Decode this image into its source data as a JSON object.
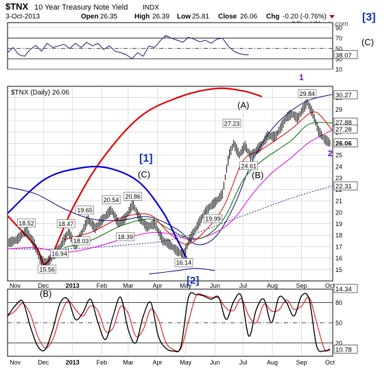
{
  "header": {
    "symbol": "$TNX",
    "name": "10 Year Treasury Note Yield",
    "exchange": "INDX",
    "date": "3-Oct-2013",
    "open_label": "Open",
    "open": "26.35",
    "high_label": "High",
    "high": "26.39",
    "low_label": "Low",
    "low": "25.81",
    "close_label": "Close",
    "close": "26.06",
    "chg_label": "Chg",
    "chg": "-0.20 (-0.76%)",
    "watermark": "©StockCharts.com"
  },
  "colors": {
    "price": "#000000",
    "ma_red": "#e02020",
    "ma_green": "#208020",
    "ma_magenta": "#e020e0",
    "band_navy": "#000080",
    "dotted_navy": "#2020a0",
    "cycle_red": "#e00000",
    "cycle_blue": "#0000e0",
    "wave_purple": "#8000c0",
    "wave_blue": "#1030c0",
    "grid": "#c8c8c8",
    "frame": "#000000",
    "down_arrow": "#c00000"
  },
  "annotations": {
    "wave3": "[3]",
    "waveC_right": "(C)",
    "wave1": "1",
    "wave2": "2",
    "waveA": "(A)",
    "waveB": "(B)",
    "wave1_blue": "[1]",
    "waveC_mid": "(C)",
    "wave2_blue": "[2]",
    "waveB_bottom": "(B)"
  },
  "chart_data": [
    {
      "panel": "RSI",
      "type": "line",
      "ylim": [
        10,
        100
      ],
      "ticks": [
        10,
        30,
        50,
        70,
        90
      ],
      "reference_lines": [
        30,
        50,
        70
      ],
      "last_value": "38.07",
      "x_days": [
        0,
        6,
        12,
        18,
        24,
        30,
        36,
        42,
        48,
        54,
        60,
        66,
        72,
        78,
        84,
        90,
        96,
        102,
        108,
        114,
        120,
        126,
        132,
        138,
        144,
        150,
        156,
        162,
        168,
        174,
        180,
        186,
        192,
        198,
        204,
        210,
        216,
        222,
        228,
        234,
        240,
        246,
        252,
        256
      ],
      "values": [
        42,
        52,
        38,
        35,
        48,
        56,
        45,
        60,
        52,
        55,
        58,
        50,
        60,
        52,
        62,
        55,
        60,
        48,
        55,
        45,
        42,
        38,
        30,
        42,
        35,
        55,
        52,
        65,
        75,
        70,
        66,
        62,
        72,
        68,
        63,
        66,
        60,
        68,
        70,
        55,
        45,
        40,
        38,
        38
      ]
    },
    {
      "panel": "Price",
      "type": "ohlc",
      "title": "$TNX (Daily) 26.06",
      "ylim": [
        14,
        31
      ],
      "ticks": [
        15,
        16,
        17,
        18,
        19,
        20,
        21,
        22,
        23,
        24,
        25,
        26,
        27,
        28,
        29,
        30
      ],
      "x_tick_labels": [
        "Nov",
        "Dec",
        "2013",
        "Feb",
        "Mar",
        "Apr",
        "May",
        "Jun",
        "Jul",
        "Aug",
        "Sep",
        "Oct"
      ],
      "x_tick_days": [
        8,
        38,
        69,
        100,
        128,
        159,
        189,
        220,
        250,
        281,
        312,
        342
      ],
      "x_range_days": [
        0,
        345
      ],
      "price_points": [
        {
          "d": 0,
          "v": 17.3
        },
        {
          "d": 10,
          "v": 17.6
        },
        {
          "d": 20,
          "v": 18.4
        },
        {
          "d": 28,
          "v": 17.3
        },
        {
          "d": 35,
          "v": 15.8
        },
        {
          "d": 42,
          "v": 15.6
        },
        {
          "d": 52,
          "v": 16.5
        },
        {
          "d": 60,
          "v": 17.6
        },
        {
          "d": 65,
          "v": 18.3
        },
        {
          "d": 72,
          "v": 17.0
        },
        {
          "d": 80,
          "v": 18.4
        },
        {
          "d": 85,
          "v": 19.4
        },
        {
          "d": 93,
          "v": 18.6
        },
        {
          "d": 100,
          "v": 19.3
        },
        {
          "d": 110,
          "v": 20.2
        },
        {
          "d": 118,
          "v": 19.0
        },
        {
          "d": 125,
          "v": 19.5
        },
        {
          "d": 133,
          "v": 20.7
        },
        {
          "d": 140,
          "v": 19.5
        },
        {
          "d": 148,
          "v": 18.7
        },
        {
          "d": 156,
          "v": 19.0
        },
        {
          "d": 165,
          "v": 17.5
        },
        {
          "d": 172,
          "v": 17.2
        },
        {
          "d": 180,
          "v": 16.6
        },
        {
          "d": 187,
          "v": 16.3
        },
        {
          "d": 193,
          "v": 17.6
        },
        {
          "d": 200,
          "v": 18.6
        },
        {
          "d": 208,
          "v": 19.8
        },
        {
          "d": 215,
          "v": 20.5
        },
        {
          "d": 222,
          "v": 21.0
        },
        {
          "d": 228,
          "v": 21.6
        },
        {
          "d": 235,
          "v": 25.0
        },
        {
          "d": 240,
          "v": 26.0
        },
        {
          "d": 246,
          "v": 25.0
        },
        {
          "d": 252,
          "v": 25.8
        },
        {
          "d": 258,
          "v": 24.9
        },
        {
          "d": 264,
          "v": 25.4
        },
        {
          "d": 270,
          "v": 25.9
        },
        {
          "d": 276,
          "v": 26.7
        },
        {
          "d": 284,
          "v": 26.6
        },
        {
          "d": 290,
          "v": 27.4
        },
        {
          "d": 296,
          "v": 28.3
        },
        {
          "d": 302,
          "v": 28.6
        },
        {
          "d": 308,
          "v": 28.2
        },
        {
          "d": 314,
          "v": 29.1
        },
        {
          "d": 318,
          "v": 29.6
        },
        {
          "d": 324,
          "v": 28.6
        },
        {
          "d": 330,
          "v": 27.1
        },
        {
          "d": 336,
          "v": 26.4
        },
        {
          "d": 342,
          "v": 26.06
        }
      ],
      "price_labels": [
        {
          "text": "18.52",
          "d": 20,
          "v": 18.52
        },
        {
          "text": "15.56",
          "d": 42,
          "v": 15.56
        },
        {
          "text": "16.94",
          "d": 55,
          "v": 16.94
        },
        {
          "text": "18.47",
          "d": 62,
          "v": 18.47
        },
        {
          "text": "18.03",
          "d": 78,
          "v": 18.03
        },
        {
          "text": "19.65",
          "d": 82,
          "v": 19.65
        },
        {
          "text": "20.54",
          "d": 110,
          "v": 20.54
        },
        {
          "text": "20.86",
          "d": 133,
          "v": 20.86
        },
        {
          "text": "18.39",
          "d": 125,
          "v": 18.39
        },
        {
          "text": "16.14",
          "d": 187,
          "v": 16.14
        },
        {
          "text": "19.99",
          "d": 218,
          "v": 19.99
        },
        {
          "text": "27.23",
          "d": 238,
          "v": 27.23
        },
        {
          "text": "24.61",
          "d": 256,
          "v": 24.61
        },
        {
          "text": "29.84",
          "d": 318,
          "v": 29.84
        }
      ],
      "right_axis_values": [
        {
          "text": "30.27",
          "v": 30.27
        },
        {
          "text": "27.88",
          "v": 27.88
        },
        {
          "text": "27.28",
          "v": 27.28
        },
        {
          "text": "26.06",
          "v": 26.06
        },
        {
          "text": "22.31",
          "v": 22.31
        }
      ],
      "ma_red": [
        [
          60,
          17.6
        ],
        [
          90,
          18.3
        ],
        [
          120,
          19.5
        ],
        [
          150,
          19.8
        ],
        [
          170,
          18.3
        ],
        [
          190,
          17.2
        ],
        [
          210,
          18.4
        ],
        [
          230,
          20.6
        ],
        [
          250,
          24.5
        ],
        [
          270,
          25.5
        ],
        [
          300,
          27.2
        ],
        [
          320,
          28.6
        ],
        [
          330,
          28.6
        ],
        [
          345,
          27.1
        ]
      ],
      "ma_green": [
        [
          60,
          16.9
        ],
        [
          90,
          17.6
        ],
        [
          120,
          18.8
        ],
        [
          150,
          19.4
        ],
        [
          170,
          18.6
        ],
        [
          190,
          17.8
        ],
        [
          210,
          17.9
        ],
        [
          230,
          19.5
        ],
        [
          250,
          22.8
        ],
        [
          270,
          24.5
        ],
        [
          300,
          26.2
        ],
        [
          320,
          27.7
        ],
        [
          345,
          27.8
        ]
      ],
      "ma_magenta": [
        [
          0,
          16.8
        ],
        [
          30,
          16.9
        ],
        [
          60,
          16.5
        ],
        [
          90,
          16.9
        ],
        [
          120,
          17.6
        ],
        [
          150,
          18.2
        ],
        [
          175,
          18.1
        ],
        [
          195,
          17.6
        ],
        [
          220,
          18.2
        ],
        [
          240,
          19.4
        ],
        [
          260,
          21.6
        ],
        [
          280,
          23.4
        ],
        [
          300,
          24.7
        ],
        [
          320,
          26.1
        ],
        [
          345,
          27.2
        ]
      ],
      "band_navy": [
        [
          0,
          22.2
        ],
        [
          30,
          21.6
        ],
        [
          60,
          20.3
        ],
        [
          90,
          19.4
        ],
        [
          120,
          19.3
        ],
        [
          150,
          19.6
        ],
        [
          180,
          18.5
        ],
        [
          200,
          17.2
        ],
        [
          220,
          17.8
        ],
        [
          240,
          20.5
        ],
        [
          260,
          24.5
        ],
        [
          280,
          27.2
        ],
        [
          300,
          28.8
        ],
        [
          320,
          29.8
        ],
        [
          345,
          30.3
        ]
      ],
      "band_navy_lower": [
        [
          150,
          14.6
        ],
        [
          180,
          14.9
        ],
        [
          200,
          15.1
        ],
        [
          220,
          14.9
        ]
      ],
      "dotted_navy": [
        [
          0,
          16.8
        ],
        [
          60,
          16.8
        ],
        [
          120,
          17.1
        ],
        [
          180,
          17.7
        ],
        [
          240,
          19.4
        ],
        [
          300,
          21.2
        ],
        [
          345,
          22.31
        ]
      ],
      "cycle_red": [
        [
          0,
          19.7
        ],
        [
          30,
          17.0
        ],
        [
          42,
          15.6
        ],
        [
          70,
          20.5
        ],
        [
          100,
          24.6
        ],
        [
          140,
          28.3
        ],
        [
          180,
          30.0
        ],
        [
          220,
          30.8
        ],
        [
          250,
          30.6
        ],
        [
          270,
          30.1
        ]
      ],
      "cycle_blue": [
        [
          0,
          19.9
        ],
        [
          40,
          22.9
        ],
        [
          80,
          23.9
        ],
        [
          110,
          23.8
        ],
        [
          140,
          22.6
        ],
        [
          165,
          20.0
        ],
        [
          180,
          17.6
        ],
        [
          190,
          16.0
        ]
      ]
    },
    {
      "panel": "Stochastic",
      "type": "line",
      "ylim": [
        0,
        100
      ],
      "ticks": [
        20,
        50,
        80
      ],
      "reference_lines": [
        20,
        50,
        80
      ],
      "last_value": "10.78",
      "upper_value": "14.34",
      "x_tick_labels": [
        "Nov",
        "Dec",
        "2013",
        "Feb",
        "Mar",
        "Apr",
        "May",
        "Jun",
        "Jul",
        "Aug",
        "Sep",
        "Oct"
      ],
      "x_days": [
        0,
        8,
        16,
        24,
        32,
        40,
        48,
        56,
        64,
        72,
        80,
        88,
        96,
        104,
        112,
        120,
        128,
        136,
        144,
        152,
        160,
        168,
        176,
        184,
        192,
        200,
        208,
        216,
        224,
        232,
        240,
        248,
        256,
        264,
        272,
        280,
        288,
        296,
        304,
        312,
        320,
        328,
        336,
        342
      ],
      "values": [
        60,
        75,
        82,
        45,
        15,
        10,
        40,
        80,
        85,
        55,
        65,
        85,
        50,
        25,
        60,
        88,
        40,
        20,
        60,
        80,
        30,
        12,
        8,
        15,
        88,
        92,
        90,
        85,
        88,
        55,
        82,
        90,
        30,
        70,
        85,
        50,
        88,
        80,
        60,
        90,
        85,
        15,
        8,
        10.78
      ]
    }
  ]
}
